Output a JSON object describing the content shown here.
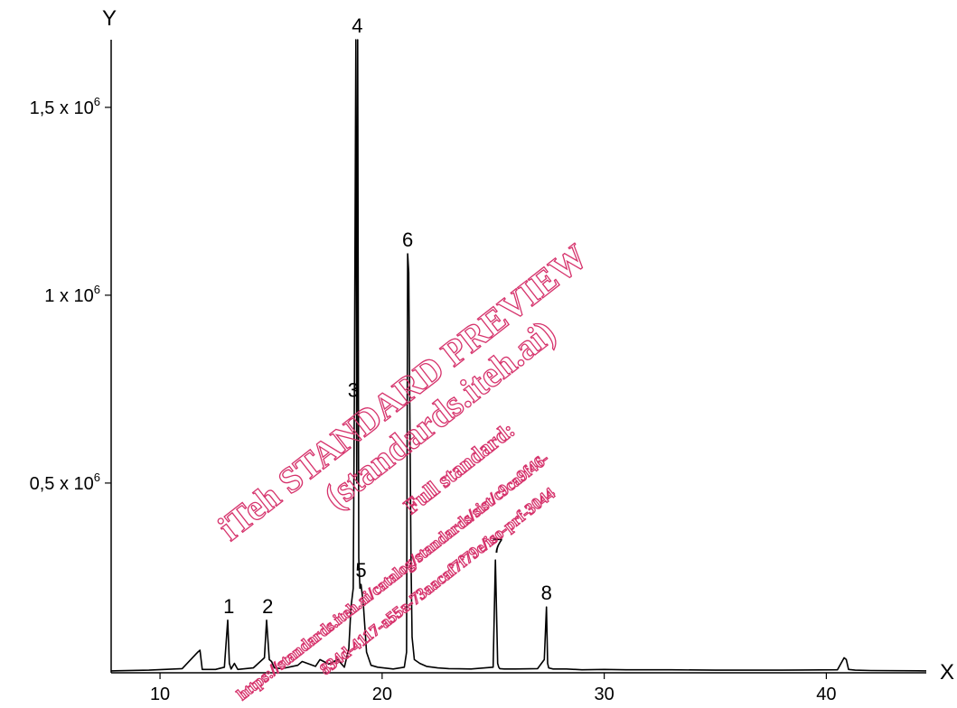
{
  "chart_data": {
    "type": "line",
    "xlabel": "X",
    "ylabel": "Y",
    "xlim": [
      7.8,
      44.5
    ],
    "ylim": [
      -5000,
      1680000
    ],
    "x_ticks": [
      {
        "value": 10,
        "label": "10"
      },
      {
        "value": 20,
        "label": "20"
      },
      {
        "value": 30,
        "label": "30"
      },
      {
        "value": 40,
        "label": "40"
      }
    ],
    "y_ticks": [
      {
        "value": 500000,
        "label": "0,5 x 10",
        "exp": "6"
      },
      {
        "value": 1000000,
        "label": "1 x 10",
        "exp": "6"
      },
      {
        "value": 1500000,
        "label": "1,5 x 10",
        "exp": "6"
      }
    ],
    "series": [
      {
        "x": [
          7.8,
          9.5,
          11.0,
          11.7,
          11.8,
          11.9,
          12.5,
          12.9,
          13.05,
          13.12,
          13.2,
          13.35,
          13.5,
          14.2,
          14.7,
          14.8,
          14.92,
          15.02,
          15.15,
          15.5,
          16.2,
          16.4,
          17.0,
          17.2,
          17.6,
          18.0,
          18.3,
          18.5,
          18.6,
          18.7,
          18.75,
          18.82,
          18.86,
          18.9,
          18.95,
          19.0,
          19.05,
          19.15,
          19.3,
          19.5,
          19.8,
          20.5,
          21.0,
          21.1,
          21.15,
          21.2,
          21.3,
          21.35,
          21.45,
          21.7,
          22.0,
          22.5,
          23.0,
          24.0,
          25.0,
          25.1,
          25.2,
          25.25,
          25.3,
          25.5,
          26.0,
          27.0,
          27.3,
          27.4,
          27.45,
          27.5,
          27.7,
          28.3,
          29.0,
          30.0,
          31.0,
          33.0,
          35.0,
          38.0,
          40.5,
          40.8,
          40.9,
          41.0,
          41.3,
          42.0,
          44.5
        ],
        "y": [
          0,
          2000,
          6000,
          50000,
          55000,
          4000,
          4000,
          10000,
          135000,
          20000,
          5000,
          20000,
          4000,
          8000,
          35000,
          135000,
          30000,
          25000,
          8000,
          6000,
          15000,
          25000,
          12000,
          30000,
          18000,
          30000,
          10000,
          60000,
          170000,
          220000,
          710000,
          1680000,
          500000,
          1680000,
          300000,
          220000,
          230000,
          180000,
          50000,
          15000,
          10000,
          5000,
          10000,
          50000,
          1110000,
          1060000,
          300000,
          90000,
          30000,
          20000,
          12000,
          8000,
          6000,
          5000,
          10000,
          295000,
          20000,
          10000,
          6000,
          5000,
          5000,
          6000,
          30000,
          170000,
          20000,
          8000,
          5000,
          5000,
          3000,
          4000,
          3000,
          3000,
          2000,
          2000,
          3000,
          35000,
          30000,
          4000,
          2000,
          1000,
          0
        ]
      }
    ],
    "peak_labels": [
      {
        "text": "1",
        "x": 13.1,
        "y": 135000
      },
      {
        "text": "2",
        "x": 14.85,
        "y": 135000
      },
      {
        "text": "3",
        "x": 18.7,
        "y": 710000
      },
      {
        "text": "4",
        "x": 18.88,
        "y": 1680000
      },
      {
        "text": "5",
        "x": 19.05,
        "y": 230000
      },
      {
        "text": "6",
        "x": 21.15,
        "y": 1110000
      },
      {
        "text": "7",
        "x": 25.2,
        "y": 295000
      },
      {
        "text": "8",
        "x": 27.4,
        "y": 170000
      }
    ],
    "grid": false,
    "legend": "none",
    "line_color": "#000000",
    "watermark": {
      "color": "#d6336c",
      "line1": "iTeh STANDARD PREVIEW",
      "line2": "(standards.iteh.ai)",
      "line3": "Full standard:",
      "line4": "https://standards.iteh.ai/catalog/standards/sist/c9ca9f46-",
      "line5": "834d-4117-a55a-73aacaf7f79e/iso-prf-3044"
    }
  }
}
